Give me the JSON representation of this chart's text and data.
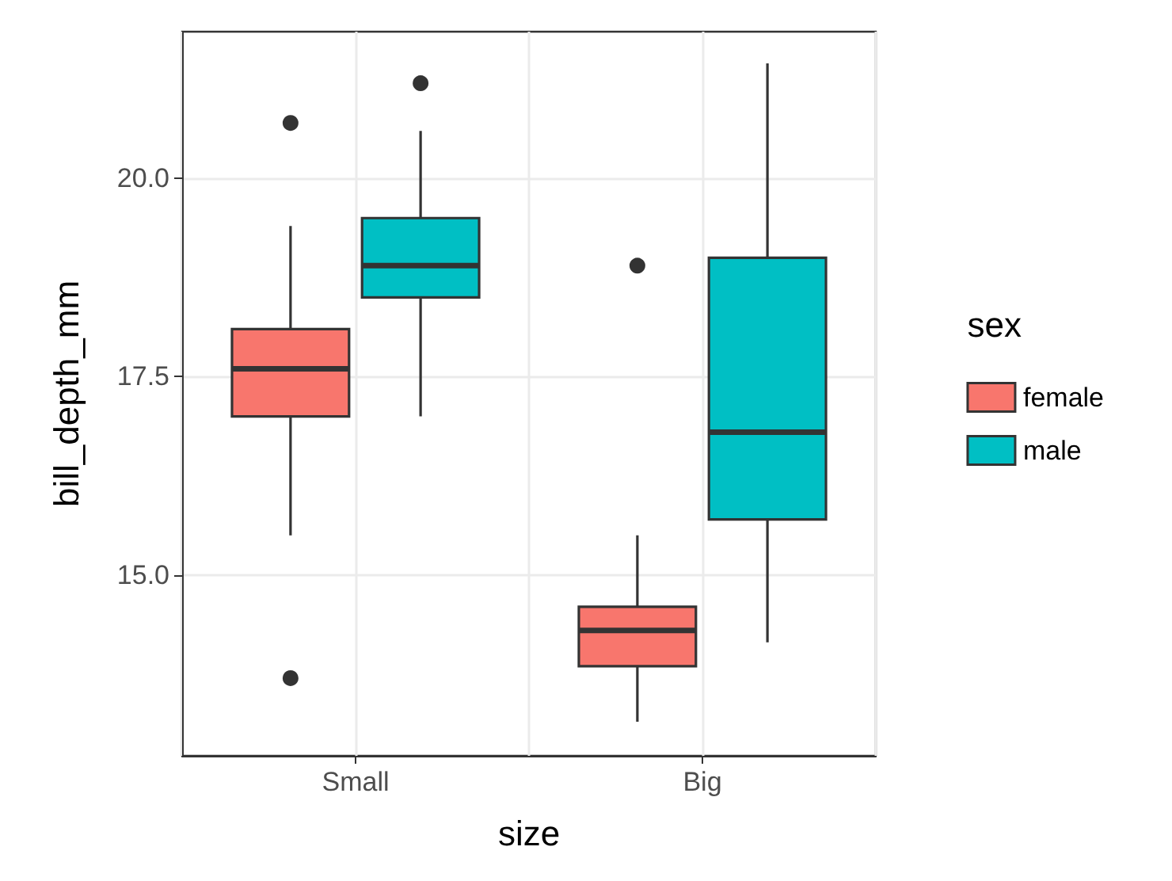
{
  "chart_data": {
    "type": "box",
    "xlabel": "size",
    "ylabel": "bill_depth_mm",
    "legend_title": "sex",
    "categories": [
      "Small",
      "Big"
    ],
    "ylim": [
      12.72,
      21.85
    ],
    "yticks": [
      {
        "value": 15,
        "label": "15.0"
      },
      {
        "value": 17.5,
        "label": "17.5"
      },
      {
        "value": 20,
        "label": "20.0"
      }
    ],
    "grid": true,
    "legend": "right",
    "series": [
      {
        "name": "female",
        "color": "#f8766d",
        "boxes": [
          {
            "low": 15.5,
            "q1": 17.0,
            "median": 17.6,
            "q3": 18.1,
            "high": 19.4,
            "outliers": [
              20.7,
              13.7
            ]
          },
          {
            "low": 13.15,
            "q1": 13.85,
            "median": 14.3,
            "q3": 14.6,
            "high": 15.5,
            "outliers": [
              18.9
            ]
          }
        ]
      },
      {
        "name": "male",
        "color": "#00bfc4",
        "boxes": [
          {
            "low": 17.0,
            "q1": 18.5,
            "median": 18.9,
            "q3": 19.5,
            "high": 20.6,
            "outliers": [
              21.2
            ]
          },
          {
            "low": 14.15,
            "q1": 15.7,
            "median": 16.8,
            "q3": 19.0,
            "high": 21.45
          }
        ]
      }
    ]
  }
}
